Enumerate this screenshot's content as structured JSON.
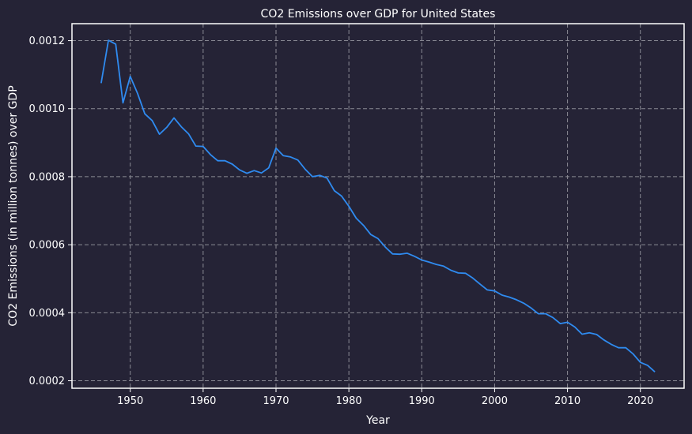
{
  "chart_data": {
    "type": "line",
    "title": "CO2 Emissions over GDP for United States",
    "xlabel": "Year",
    "ylabel": "CO2 Emissions (in million tonnes) over GDP",
    "xlim": [
      1942,
      2026
    ],
    "ylim": [
      0.000178,
      0.00125
    ],
    "xticks": [
      1950,
      1960,
      1970,
      1980,
      1990,
      2000,
      2010,
      2020
    ],
    "yticks": [
      "0.0002",
      "0.0004",
      "0.0006",
      "0.0008",
      "0.0010",
      "0.0012"
    ],
    "grid": true,
    "color": "#2f8bf0",
    "x": [
      1946,
      1947,
      1948,
      1949,
      1950,
      1951,
      1952,
      1953,
      1954,
      1955,
      1956,
      1957,
      1958,
      1959,
      1960,
      1961,
      1962,
      1963,
      1964,
      1965,
      1966,
      1967,
      1968,
      1969,
      1970,
      1971,
      1972,
      1973,
      1974,
      1975,
      1976,
      1977,
      1978,
      1979,
      1980,
      1981,
      1982,
      1983,
      1984,
      1985,
      1986,
      1987,
      1988,
      1989,
      1990,
      1991,
      1992,
      1993,
      1994,
      1995,
      1996,
      1997,
      1998,
      1999,
      2000,
      2001,
      2002,
      2003,
      2004,
      2005,
      2006,
      2007,
      2008,
      2009,
      2010,
      2011,
      2012,
      2013,
      2014,
      2015,
      2016,
      2017,
      2018,
      2019,
      2020,
      2021,
      2022
    ],
    "values": [
      0.001075,
      0.001201,
      0.00119,
      0.001017,
      0.001095,
      0.001045,
      0.000985,
      0.000965,
      0.000925,
      0.000945,
      0.000973,
      0.000947,
      0.000926,
      0.00089,
      0.000889,
      0.000865,
      0.000847,
      0.000847,
      0.000837,
      0.00082,
      0.00081,
      0.000818,
      0.000811,
      0.000826,
      0.000884,
      0.000862,
      0.000858,
      0.000849,
      0.000822,
      0.0008,
      0.000804,
      0.000796,
      0.000759,
      0.000743,
      0.000713,
      0.000678,
      0.000657,
      0.00063,
      0.000618,
      0.000593,
      0.000573,
      0.000572,
      0.000575,
      0.000566,
      0.000555,
      0.000549,
      0.000542,
      0.000537,
      0.000525,
      0.000517,
      0.000516,
      0.000502,
      0.000484,
      0.000467,
      0.000464,
      0.000452,
      0.000446,
      0.000438,
      0.000428,
      0.000414,
      0.000397,
      0.000397,
      0.000386,
      0.000368,
      0.000372,
      0.000358,
      0.000337,
      0.000341,
      0.000336,
      0.00032,
      0.000307,
      0.000297,
      0.000297,
      0.000279,
      0.000254,
      0.000245,
      0.000226
    ]
  }
}
